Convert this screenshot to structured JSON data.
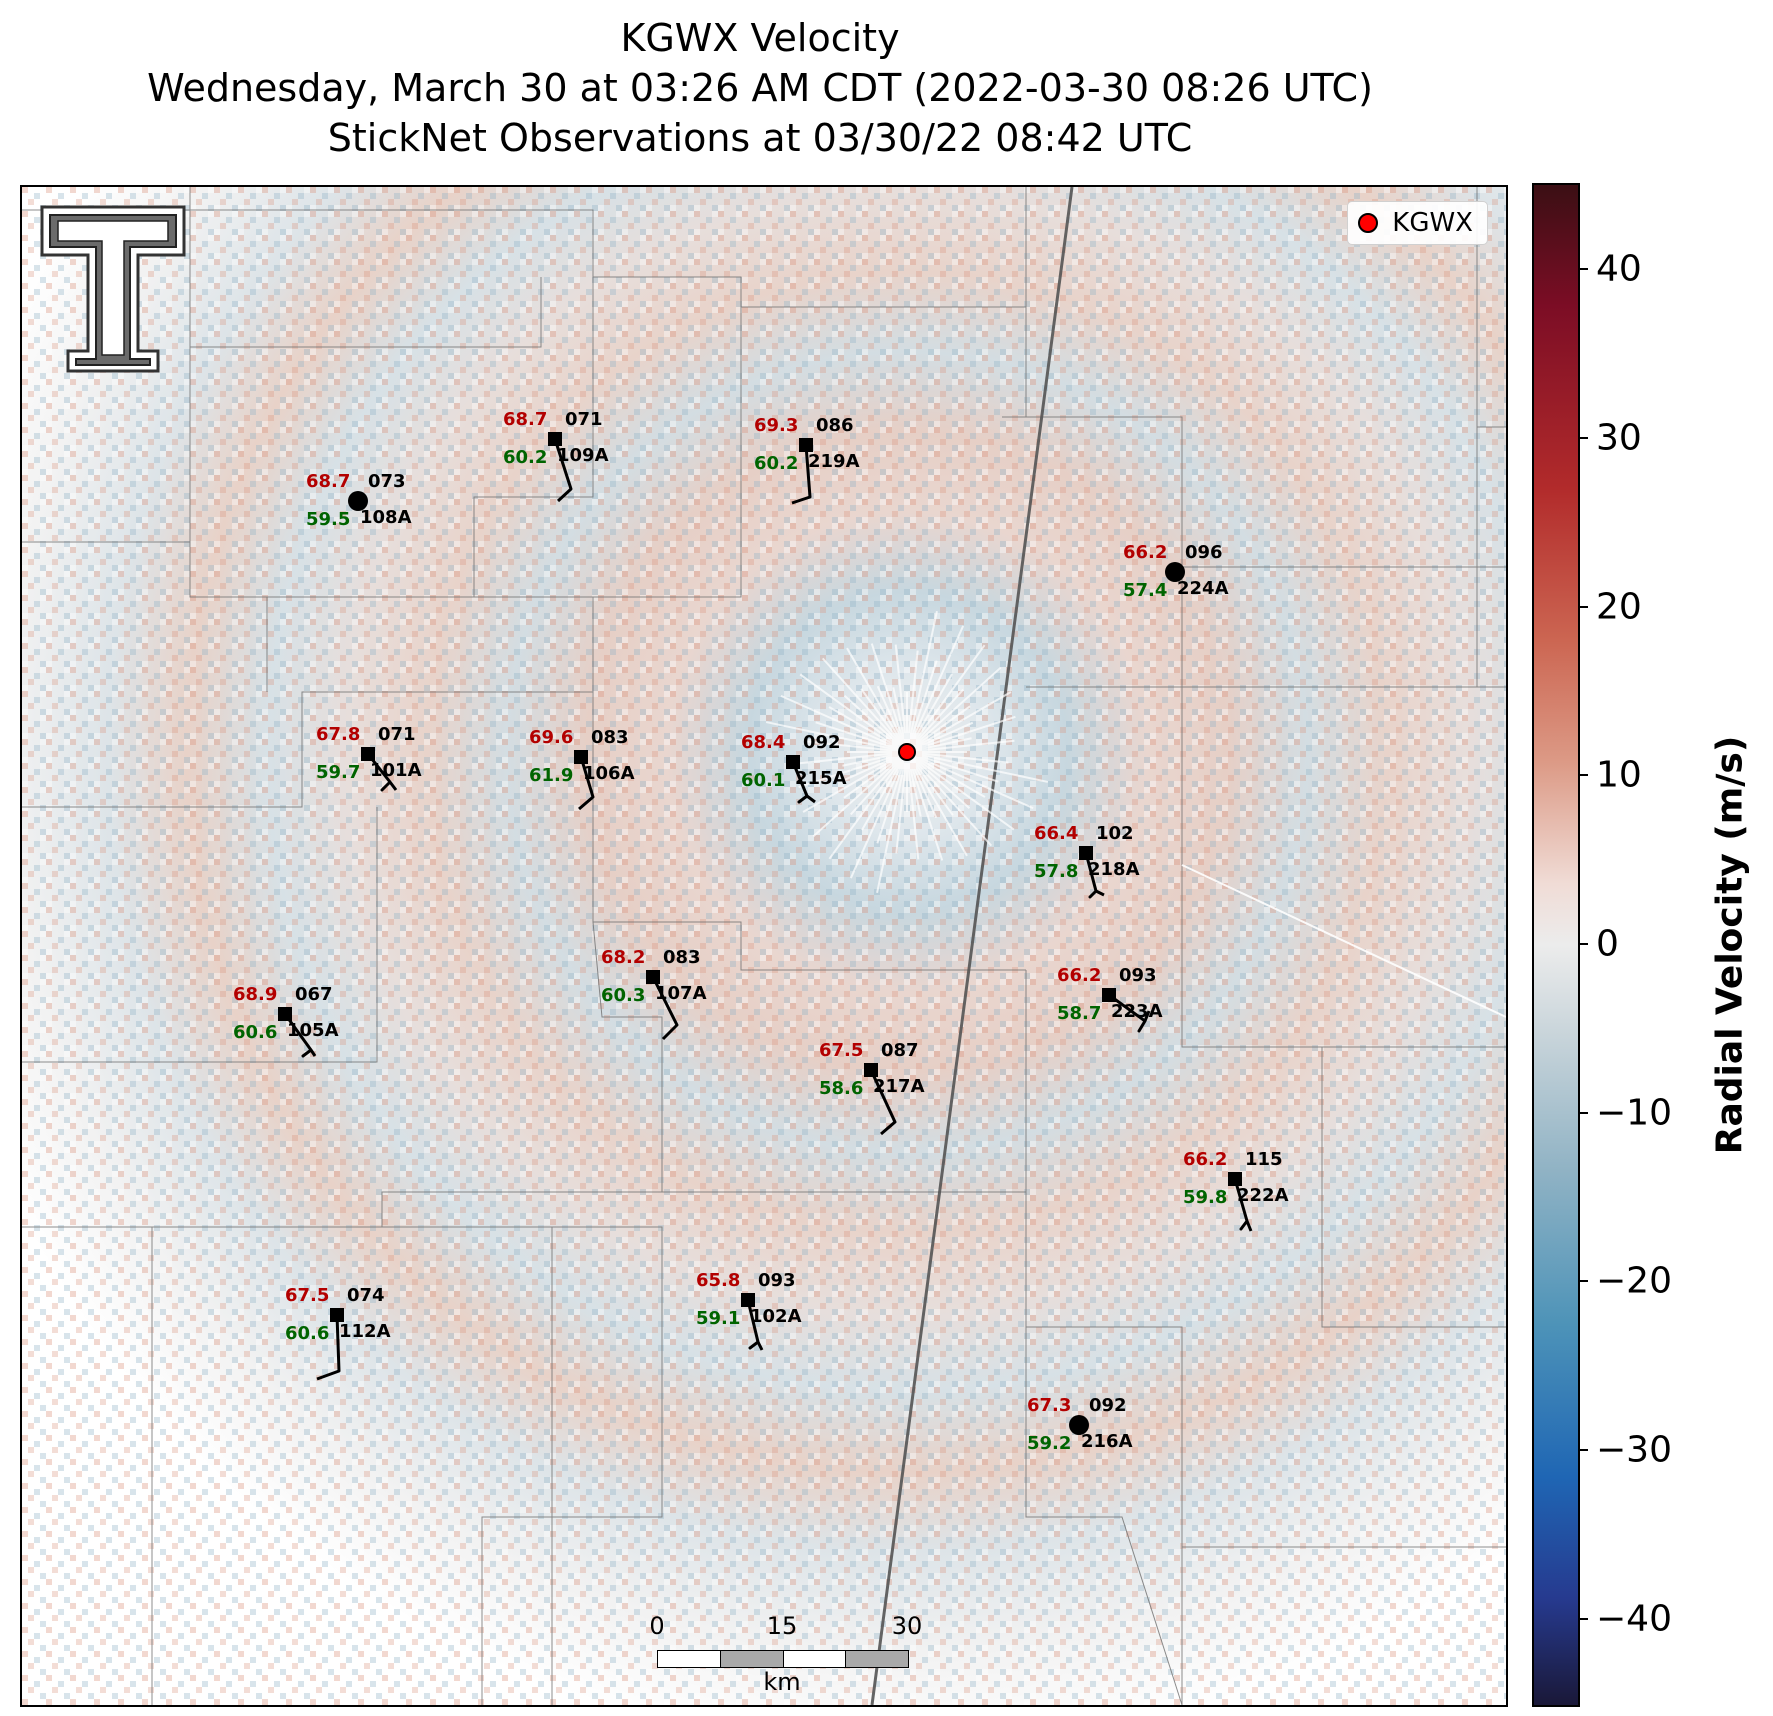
{
  "title": {
    "line1": "KGWX Velocity",
    "line2": "Wednesday, March 30 at 03:26 AM CDT (2022-03-30 08:26 UTC)",
    "line3": "StickNet Observations at 03/30/22 08:42 UTC"
  },
  "legend": {
    "label": "KGWX",
    "marker_color": "#ff0000"
  },
  "radar": {
    "name": "KGWX"
  },
  "scalebar": {
    "ticks": [
      "0",
      "15",
      "30"
    ],
    "unit": "km"
  },
  "colorbar": {
    "label": "Radial Velocity (m/s)",
    "ticks": [
      "40",
      "30",
      "20",
      "10",
      "0",
      "−10",
      "−20",
      "−30",
      "−40"
    ],
    "range": [
      -45,
      45
    ],
    "colormap": [
      "#1a1838",
      "#263a8f",
      "#1f66b4",
      "#4d93b8",
      "#8fb2c4",
      "#c8d4da",
      "#ececec",
      "#f0dcd6",
      "#dc9a86",
      "#cc6652",
      "#b22b2b",
      "#7c0d25",
      "#3b0f14"
    ]
  },
  "logo": {
    "name": "Texas Tech Double T"
  },
  "stations": [
    {
      "id": "108A",
      "temp": "68.7",
      "dewpoint": "59.5",
      "direction": "073",
      "marker": "circle"
    },
    {
      "id": "109A",
      "temp": "68.7",
      "dewpoint": "60.2",
      "direction": "071",
      "marker": "square"
    },
    {
      "id": "219A",
      "temp": "69.3",
      "dewpoint": "60.2",
      "direction": "086",
      "marker": "square"
    },
    {
      "id": "224A",
      "temp": "66.2",
      "dewpoint": "57.4",
      "direction": "096",
      "marker": "circle"
    },
    {
      "id": "101A",
      "temp": "67.8",
      "dewpoint": "59.7",
      "direction": "071",
      "marker": "square"
    },
    {
      "id": "106A",
      "temp": "69.6",
      "dewpoint": "61.9",
      "direction": "083",
      "marker": "square"
    },
    {
      "id": "215A",
      "temp": "68.4",
      "dewpoint": "60.1",
      "direction": "092",
      "marker": "square"
    },
    {
      "id": "218A",
      "temp": "66.4",
      "dewpoint": "57.8",
      "direction": "102",
      "marker": "square"
    },
    {
      "id": "107A",
      "temp": "68.2",
      "dewpoint": "60.3",
      "direction": "083",
      "marker": "square"
    },
    {
      "id": "105A",
      "temp": "68.9",
      "dewpoint": "60.6",
      "direction": "067",
      "marker": "square"
    },
    {
      "id": "223A",
      "temp": "66.2",
      "dewpoint": "58.7",
      "direction": "093",
      "marker": "square"
    },
    {
      "id": "217A",
      "temp": "67.5",
      "dewpoint": "58.6",
      "direction": "087",
      "marker": "square"
    },
    {
      "id": "222A",
      "temp": "66.2",
      "dewpoint": "59.8",
      "direction": "115",
      "marker": "square"
    },
    {
      "id": "112A",
      "temp": "67.5",
      "dewpoint": "60.6",
      "direction": "074",
      "marker": "square"
    },
    {
      "id": "102A",
      "temp": "65.8",
      "dewpoint": "59.1",
      "direction": "093",
      "marker": "square"
    },
    {
      "id": "216A",
      "temp": "67.3",
      "dewpoint": "59.2",
      "direction": "092",
      "marker": "circle"
    }
  ]
}
